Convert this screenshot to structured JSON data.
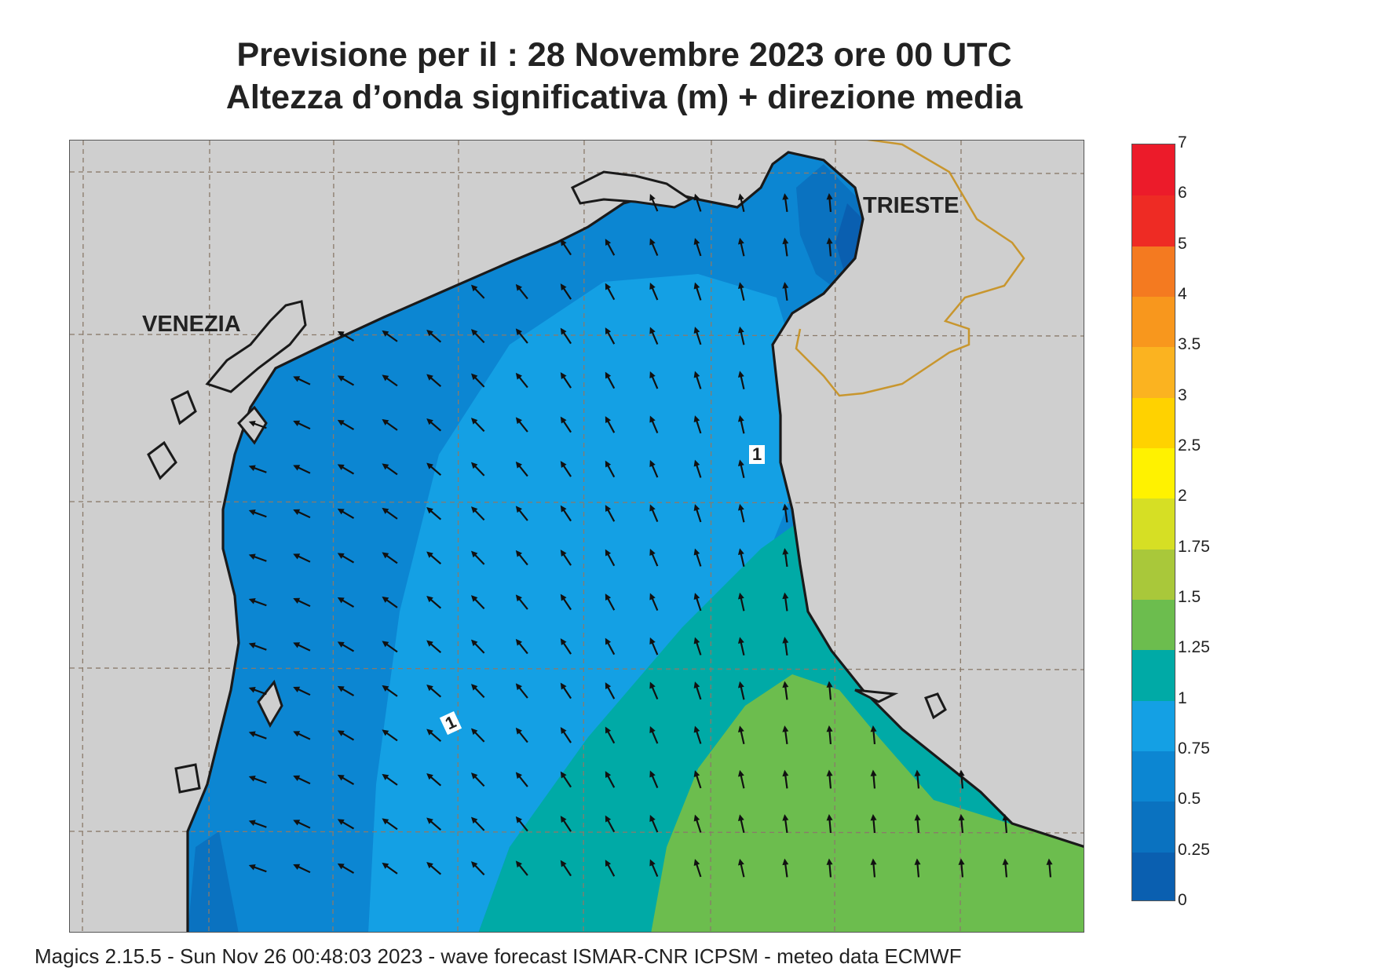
{
  "title": {
    "line1": "Previsione per il  :  28 Novembre  2023   ore 00 UTC",
    "line2": "Altezza d’onda significativa (m) + direzione media"
  },
  "cities": {
    "venezia": "VENEZIA",
    "trieste": "TRIESTE"
  },
  "contour_label": "1",
  "legend": {
    "levels": [
      {
        "label": "0",
        "color": "#0a5fb0"
      },
      {
        "label": "0.25",
        "color": "#0a72c0"
      },
      {
        "label": "0.5",
        "color": "#0c86d2"
      },
      {
        "label": "0.75",
        "color": "#14a0e4"
      },
      {
        "label": "1",
        "color": "#00aaa6"
      },
      {
        "label": "1.25",
        "color": "#6cbd4e"
      },
      {
        "label": "1.5",
        "color": "#a9c83a"
      },
      {
        "label": "1.75",
        "color": "#d6df24"
      },
      {
        "label": "2",
        "color": "#fff200"
      },
      {
        "label": "2.5",
        "color": "#ffd200"
      },
      {
        "label": "3",
        "color": "#fbb320"
      },
      {
        "label": "3.5",
        "color": "#f8971d"
      },
      {
        "label": "4",
        "color": "#f47a20"
      },
      {
        "label": "5",
        "color": "#ee2b24"
      },
      {
        "label": "6",
        "color": "#ec1b2a"
      },
      {
        "label": "7",
        "color": "#ec155d"
      }
    ],
    "top_label": "7"
  },
  "colors": {
    "land": "#cfcfcf",
    "coast": "#1a1a1a",
    "border": "#c8962e",
    "grid": "#8a7a6a",
    "arrow": "#111111"
  },
  "footer": "Magics 2.15.5 - Sun Nov 26 00:48:03 2023 - wave forecast  ISMAR-CNR  ICPSM - meteo data   ECMWF"
}
